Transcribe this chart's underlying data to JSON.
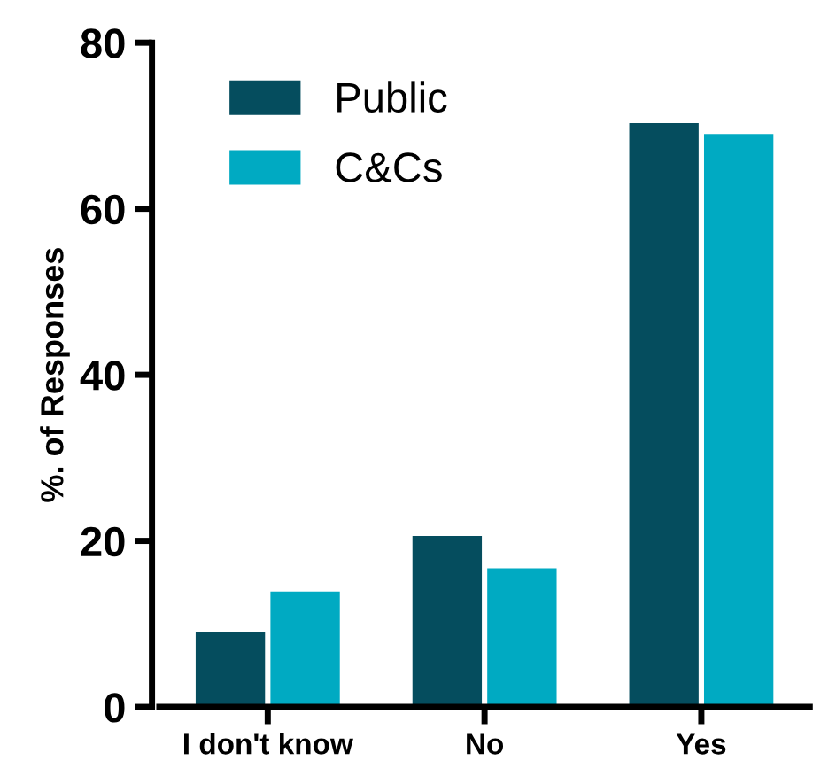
{
  "chart_data": {
    "type": "bar",
    "ylabel": "%. of Responses",
    "categories": [
      "I don't know",
      "No",
      "Yes"
    ],
    "series": [
      {
        "name": "Public",
        "color": "#054d5e",
        "values": [
          9.0,
          20.6,
          70.3
        ]
      },
      {
        "name": "C&Cs",
        "color": "#00aac2",
        "values": [
          13.9,
          16.7,
          69.0
        ]
      }
    ],
    "ylim": [
      0,
      80
    ],
    "yticks": [
      0,
      20,
      40,
      60,
      80
    ],
    "grid": false,
    "legend": "top left"
  }
}
